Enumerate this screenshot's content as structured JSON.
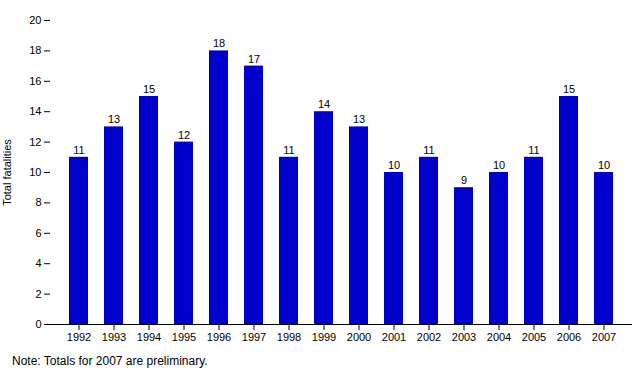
{
  "chart_data": {
    "type": "bar",
    "categories": [
      "1992",
      "1993",
      "1994",
      "1995",
      "1996",
      "1997",
      "1998",
      "1999",
      "2000",
      "2001",
      "2002",
      "2003",
      "2004",
      "2005",
      "2006",
      "2007"
    ],
    "values": [
      11,
      13,
      15,
      12,
      18,
      17,
      11,
      14,
      13,
      10,
      11,
      9,
      10,
      11,
      15,
      10
    ],
    "color": "#0000CC",
    "ylabel": "Total fatalities",
    "ylim": [
      0,
      20
    ],
    "yticks": [
      0,
      2,
      4,
      6,
      8,
      10,
      12,
      14,
      16,
      18,
      20
    ],
    "grid": false,
    "data_labels": true,
    "annotations": [
      "Note: Totals for 2007 are preliminary."
    ]
  }
}
